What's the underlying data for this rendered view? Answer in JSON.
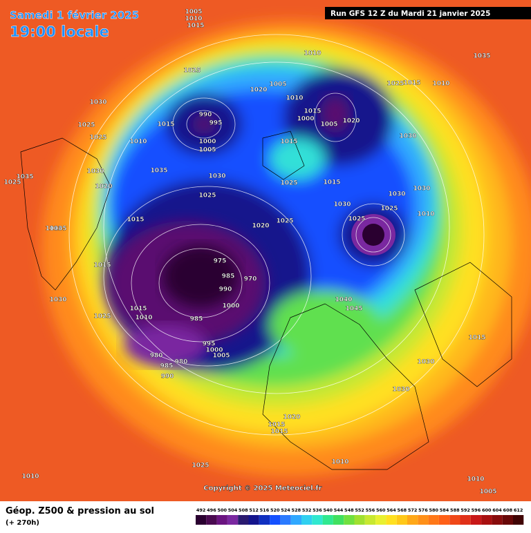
{
  "header": {
    "date": "Samedi 1 février 2025",
    "time": "19:00 locale",
    "run": "Run GFS 12 Z du Mardi 21 janvier 2025"
  },
  "map": {
    "copyright": "Copyright © 2025 Meteociel.fr",
    "pressure_labels": [
      1005,
      1010,
      1015,
      1025,
      1030,
      1025,
      1025,
      1015,
      1010,
      990,
      995,
      1000,
      1005,
      1020,
      1010,
      1005,
      1010,
      1015,
      1000,
      1005,
      1020,
      1025,
      1015,
      1010,
      1035,
      1015,
      1030,
      1035,
      1020,
      1025,
      1035,
      1030,
      1030,
      1015,
      1025,
      1025,
      1030,
      1030,
      1025,
      1025,
      1015,
      1030,
      1020,
      1025,
      1010,
      1035,
      1010,
      975,
      985,
      970,
      990,
      1000,
      985,
      995,
      1000,
      1005,
      980,
      985,
      980,
      990,
      1015,
      1010,
      1025,
      1030,
      1015,
      1040,
      1045,
      1015,
      1030,
      1030,
      1015,
      1020,
      1015,
      1010,
      1025,
      1010,
      1010,
      1005
    ]
  },
  "legend": {
    "title": "Géop. Z500 & pression au sol",
    "subtitle": "(+ 270h)",
    "ticks": [
      492,
      496,
      500,
      504,
      508,
      512,
      516,
      520,
      524,
      528,
      532,
      536,
      540,
      544,
      548,
      552,
      556,
      560,
      564,
      568,
      572,
      576,
      580,
      584,
      588,
      592,
      596,
      600,
      604,
      608,
      612
    ],
    "colors": [
      "#2a0030",
      "#4a0a50",
      "#6a1480",
      "#7a28a0",
      "#2a1a70",
      "#14148c",
      "#1030c0",
      "#1450ff",
      "#2a7aff",
      "#30a8ff",
      "#30d0f0",
      "#30e8d0",
      "#30e890",
      "#40e060",
      "#70e040",
      "#a0e030",
      "#c8e830",
      "#e8f030",
      "#ffe020",
      "#ffc818",
      "#ffa818",
      "#ff9018",
      "#ff7818",
      "#ff6018",
      "#f04818",
      "#e03018",
      "#c81818",
      "#a81010",
      "#880c0c",
      "#680808",
      "#400404"
    ]
  }
}
